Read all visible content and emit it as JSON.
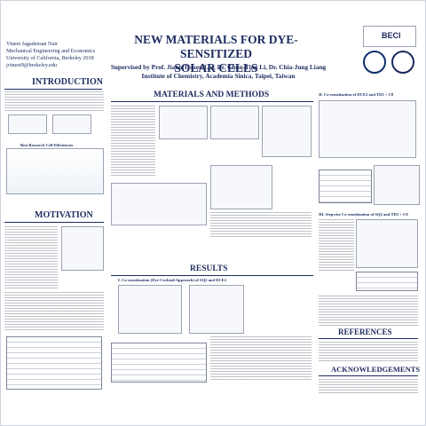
{
  "header": {
    "title_line1": "NEW MATERIALS FOR DYE-SENSITIZED",
    "title_line2": "SOLAR CELLS",
    "supervisors": "Supervised by Prof. Jiann T'suen Lin, Dr. Chun-Ting Li, Dr. Chia-Jung Liang",
    "institute": "Institute of Chemistry, Academia Sinica, Taipei, Taiwan"
  },
  "author": {
    "name": "Vineet Jagadeesan Nair",
    "dept": "Mechanical Engineering and Economics",
    "univ": "University of California, Berkeley 2018",
    "email": "jvineet9@berkeley.edu"
  },
  "logos": {
    "beci": "BECI"
  },
  "sections": {
    "introduction": "INTRODUCTION",
    "motivation": "MOTIVATION",
    "materials": "MATERIALS AND METHODS",
    "results": "RESULTS",
    "results_sub1": "I. Co-sensitization (Dye-Cocktail Approach) of SQ2 and DCE2",
    "results_sub2": "II. Co-sensitization of DCE2 and TD3 + C8",
    "results_sub3": "III. Stepwise Co-sensitization of SQ2 and TD3 + C8",
    "references": "REFERENCES",
    "acknowledgements": "ACKNOWLEDGEMENTS",
    "best_eff": "Best Research-Cell Efficiencies"
  },
  "colors": {
    "navy": "#1c2a5e",
    "accent_red": "#c0392b",
    "accent_blue": "#2e5fa8"
  }
}
